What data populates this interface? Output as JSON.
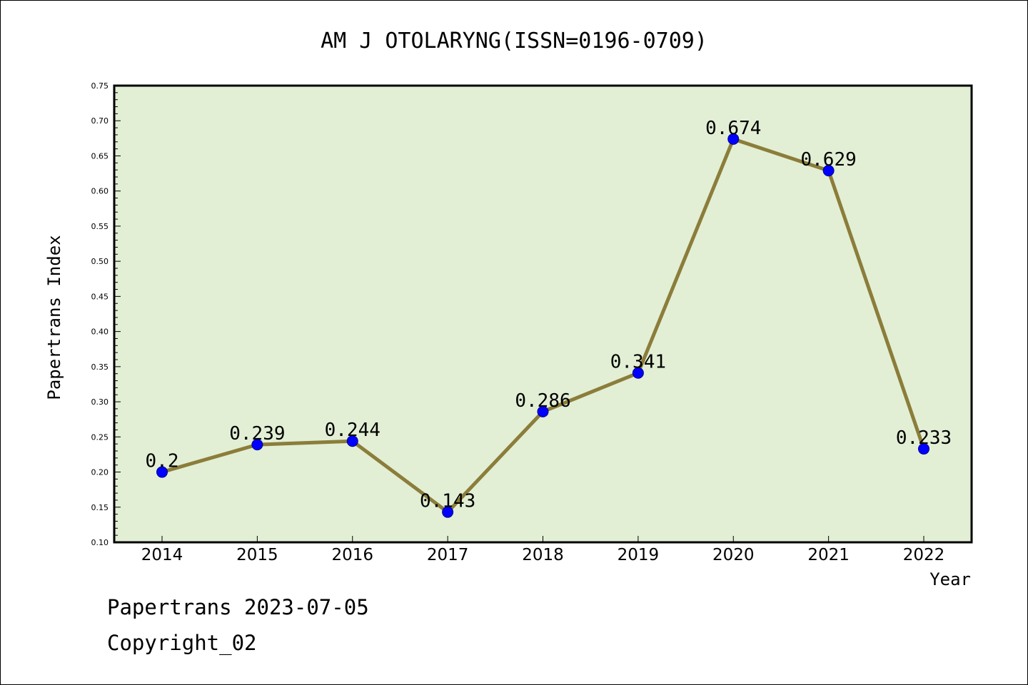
{
  "chart_data": {
    "type": "line",
    "title": "AM J OTOLARYNG(ISSN=0196-0709)",
    "xlabel": "Year",
    "ylabel": "Papertrans Index",
    "categories": [
      "2014",
      "2015",
      "2016",
      "2017",
      "2018",
      "2019",
      "2020",
      "2021",
      "2022"
    ],
    "values": [
      0.2,
      0.239,
      0.244,
      0.143,
      0.286,
      0.341,
      0.674,
      0.629,
      0.233
    ],
    "data_labels": [
      "0.2",
      "0.239",
      "0.244",
      "0.143",
      "0.286",
      "0.341",
      "0.674",
      "0.629",
      "0.233"
    ],
    "ylim": [
      0.1,
      0.75
    ],
    "yticks": [
      "0.10",
      "0.15",
      "0.20",
      "0.25",
      "0.30",
      "0.35",
      "0.40",
      "0.45",
      "0.50",
      "0.55",
      "0.60",
      "0.65",
      "0.70",
      "0.75"
    ],
    "grid": false,
    "colors": {
      "plot_bg": "#e2efd5",
      "line": "#8b7d3a",
      "marker": "#0000ff"
    }
  },
  "footer": {
    "date_line": "Papertrans 2023-07-05",
    "copyright_line": "Copyright_02"
  }
}
